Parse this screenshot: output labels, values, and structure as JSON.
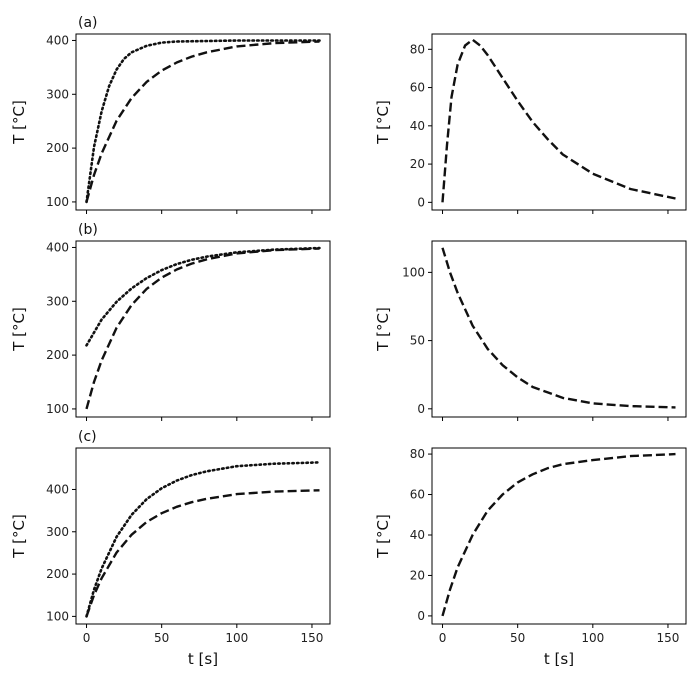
{
  "chart_data": [
    {
      "panel": "(a)",
      "row": 0,
      "col": 0,
      "type": "line",
      "xlabel": "",
      "ylabel": "T [°C]",
      "xlim": [
        -7,
        162
      ],
      "ylim": [
        85,
        412
      ],
      "xticks": [
        0,
        50,
        100,
        150
      ],
      "xtick_labels": [
        "",
        "",
        "",
        ""
      ],
      "yticks": [
        100,
        200,
        300,
        400
      ],
      "ytick_labels": [
        "100",
        "200",
        "300",
        "400"
      ],
      "series": [
        {
          "style": "dotted",
          "x": [
            0,
            5,
            10,
            15,
            20,
            25,
            30,
            40,
            50,
            60,
            80,
            100,
            125,
            155
          ],
          "y": [
            100,
            202,
            268,
            315,
            346,
            366,
            378,
            390,
            396,
            398,
            399,
            400,
            400,
            400
          ]
        },
        {
          "style": "dashed",
          "x": [
            0,
            5,
            10,
            20,
            30,
            40,
            50,
            60,
            70,
            80,
            100,
            125,
            155
          ],
          "y": [
            100,
            150,
            190,
            251,
            293,
            323,
            344,
            359,
            370,
            378,
            389,
            395,
            398
          ]
        }
      ]
    },
    {
      "panel": "",
      "row": 0,
      "col": 1,
      "type": "line",
      "xlabel": "",
      "ylabel": "T [°C]",
      "xlim": [
        -7,
        162
      ],
      "ylim": [
        -4,
        88
      ],
      "xticks": [
        0,
        50,
        100,
        150
      ],
      "xtick_labels": [
        "",
        "",
        "",
        ""
      ],
      "yticks": [
        0,
        20,
        40,
        60,
        80
      ],
      "ytick_labels": [
        "0",
        "20",
        "40",
        "60",
        "80"
      ],
      "series": [
        {
          "style": "dashed",
          "x": [
            0,
            3,
            6,
            10,
            15,
            20,
            25,
            30,
            40,
            50,
            60,
            70,
            80,
            100,
            125,
            155
          ],
          "y": [
            0,
            30,
            55,
            72,
            82,
            85,
            82,
            77,
            65,
            53,
            42,
            33,
            25,
            15,
            7,
            2
          ]
        }
      ]
    },
    {
      "panel": "(b)",
      "row": 1,
      "col": 0,
      "type": "line",
      "xlabel": "",
      "ylabel": "T [°C]",
      "xlim": [
        -7,
        162
      ],
      "ylim": [
        85,
        412
      ],
      "xticks": [
        0,
        50,
        100,
        150
      ],
      "xtick_labels": [
        "",
        "",
        "",
        ""
      ],
      "yticks": [
        100,
        200,
        300,
        400
      ],
      "ytick_labels": [
        "100",
        "200",
        "300",
        "400"
      ],
      "series": [
        {
          "style": "dotted",
          "x": [
            0,
            10,
            20,
            30,
            40,
            50,
            60,
            70,
            80,
            100,
            125,
            155
          ],
          "y": [
            218,
            266,
            299,
            324,
            343,
            358,
            369,
            377,
            383,
            391,
            396,
            399
          ]
        },
        {
          "style": "dashed",
          "x": [
            0,
            5,
            10,
            20,
            30,
            40,
            50,
            60,
            70,
            80,
            100,
            125,
            155
          ],
          "y": [
            100,
            150,
            190,
            251,
            293,
            323,
            344,
            359,
            370,
            378,
            389,
            395,
            398
          ]
        }
      ]
    },
    {
      "panel": "",
      "row": 1,
      "col": 1,
      "type": "line",
      "xlabel": "",
      "ylabel": "T [°C]",
      "xlim": [
        -7,
        162
      ],
      "ylim": [
        -6,
        123
      ],
      "xticks": [
        0,
        50,
        100,
        150
      ],
      "xtick_labels": [
        "",
        "",
        "",
        ""
      ],
      "yticks": [
        0,
        50,
        100
      ],
      "ytick_labels": [
        "0",
        "50",
        "100"
      ],
      "series": [
        {
          "style": "dashed",
          "x": [
            0,
            5,
            10,
            20,
            30,
            40,
            50,
            60,
            70,
            80,
            100,
            125,
            155
          ],
          "y": [
            118,
            100,
            85,
            61,
            44,
            32,
            23,
            16,
            12,
            8,
            4,
            2,
            1
          ]
        }
      ]
    },
    {
      "panel": "(c)",
      "row": 2,
      "col": 0,
      "type": "line",
      "xlabel": "t [s]",
      "ylabel": "T [°C]",
      "xlim": [
        -7,
        162
      ],
      "ylim": [
        82,
        498
      ],
      "xticks": [
        0,
        50,
        100,
        150
      ],
      "xtick_labels": [
        "0",
        "50",
        "100",
        "150"
      ],
      "yticks": [
        100,
        200,
        300,
        400
      ],
      "ytick_labels": [
        "100",
        "200",
        "300",
        "400"
      ],
      "series": [
        {
          "style": "dotted",
          "x": [
            0,
            5,
            10,
            20,
            30,
            40,
            50,
            60,
            70,
            80,
            100,
            125,
            155
          ],
          "y": [
            100,
            163,
            213,
            288,
            340,
            377,
            403,
            421,
            434,
            443,
            455,
            461,
            464
          ]
        },
        {
          "style": "dashed",
          "x": [
            0,
            5,
            10,
            20,
            30,
            40,
            50,
            60,
            70,
            80,
            100,
            125,
            155
          ],
          "y": [
            100,
            150,
            190,
            251,
            293,
            323,
            344,
            359,
            370,
            378,
            389,
            395,
            398
          ]
        }
      ]
    },
    {
      "panel": "",
      "row": 2,
      "col": 1,
      "type": "line",
      "xlabel": "t [s]",
      "ylabel": "T [°C]",
      "xlim": [
        -7,
        162
      ],
      "ylim": [
        -4,
        83
      ],
      "xticks": [
        0,
        50,
        100,
        150
      ],
      "xtick_labels": [
        "0",
        "50",
        "100",
        "150"
      ],
      "yticks": [
        0,
        20,
        40,
        60,
        80
      ],
      "ytick_labels": [
        "0",
        "20",
        "40",
        "60",
        "80"
      ],
      "series": [
        {
          "style": "dashed",
          "x": [
            0,
            5,
            10,
            20,
            30,
            40,
            50,
            60,
            70,
            80,
            100,
            125,
            155
          ],
          "y": [
            0,
            13,
            24,
            40,
            52,
            60,
            66,
            70,
            73,
            75,
            77,
            79,
            80
          ]
        }
      ]
    }
  ]
}
